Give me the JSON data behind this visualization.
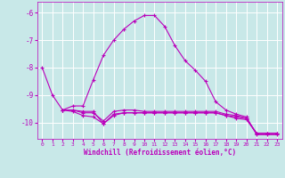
{
  "xlabel": "Windchill (Refroidissement éolien,°C)",
  "bg_color": "#c8e8e8",
  "grid_color": "#b0d0d0",
  "line_color": "#bb00bb",
  "xlim": [
    -0.5,
    23.5
  ],
  "ylim": [
    -10.6,
    -5.6
  ],
  "yticks": [
    -10,
    -9,
    -8,
    -7,
    -6
  ],
  "xticks": [
    0,
    1,
    2,
    3,
    4,
    5,
    6,
    7,
    8,
    9,
    10,
    11,
    12,
    13,
    14,
    15,
    16,
    17,
    18,
    19,
    20,
    21,
    22,
    23
  ],
  "series1_x": [
    0,
    1,
    2,
    3,
    4,
    5,
    6,
    7,
    8,
    9,
    10,
    11,
    12,
    13,
    14,
    15,
    16,
    17,
    18,
    19,
    20,
    21,
    22,
    23
  ],
  "series1_y": [
    -8.0,
    -9.0,
    -9.55,
    -9.4,
    -9.4,
    -8.45,
    -7.55,
    -7.0,
    -6.6,
    -6.3,
    -6.1,
    -6.1,
    -6.5,
    -7.2,
    -7.75,
    -8.1,
    -8.5,
    -9.25,
    -9.55,
    -9.7,
    -9.8,
    -10.45,
    -10.45,
    -10.45
  ],
  "series2_x": [
    2,
    3,
    4,
    5,
    6,
    7,
    8,
    9,
    10,
    11,
    12,
    13,
    14,
    15,
    16,
    17,
    18,
    19,
    20,
    21,
    22,
    23
  ],
  "series2_y": [
    -9.55,
    -9.55,
    -9.6,
    -9.6,
    -10.05,
    -9.7,
    -9.65,
    -9.65,
    -9.65,
    -9.65,
    -9.65,
    -9.65,
    -9.65,
    -9.65,
    -9.65,
    -9.65,
    -9.75,
    -9.8,
    -9.85,
    -10.4,
    -10.4,
    -10.4
  ],
  "series3_x": [
    2,
    3,
    4,
    5,
    6,
    7,
    8,
    9,
    10,
    11,
    12,
    13,
    14,
    15,
    16,
    17,
    18,
    19,
    20,
    21,
    22,
    23
  ],
  "series3_y": [
    -9.55,
    -9.6,
    -9.75,
    -9.8,
    -10.05,
    -9.75,
    -9.65,
    -9.65,
    -9.65,
    -9.65,
    -9.65,
    -9.65,
    -9.65,
    -9.65,
    -9.65,
    -9.65,
    -9.75,
    -9.85,
    -9.9,
    -10.4,
    -10.4,
    -10.4
  ],
  "series4_x": [
    2,
    3,
    4,
    5,
    6,
    7,
    8,
    9,
    10,
    11,
    12,
    13,
    14,
    15,
    16,
    17,
    18,
    19,
    20,
    21,
    22,
    23
  ],
  "series4_y": [
    -9.55,
    -9.55,
    -9.65,
    -9.65,
    -9.95,
    -9.6,
    -9.55,
    -9.55,
    -9.6,
    -9.6,
    -9.6,
    -9.6,
    -9.6,
    -9.6,
    -9.6,
    -9.6,
    -9.7,
    -9.75,
    -9.85,
    -10.4,
    -10.4,
    -10.4
  ]
}
